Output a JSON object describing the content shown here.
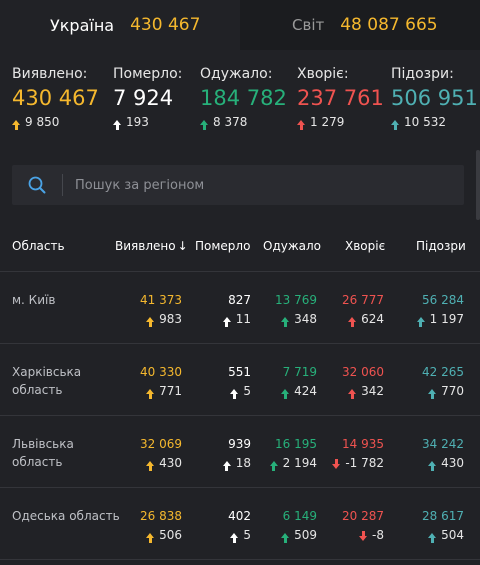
{
  "tabs": [
    {
      "name": "Україна",
      "count": "430 467"
    },
    {
      "name": "Світ",
      "count": "48 087 665"
    }
  ],
  "summary": [
    {
      "label": "Виявлено:",
      "value": "430 467",
      "delta": "9 850"
    },
    {
      "label": "Померло:",
      "value": "7 924",
      "delta": "193"
    },
    {
      "label": "Одужало:",
      "value": "184 782",
      "delta": "8 378"
    },
    {
      "label": "Хворіє:",
      "value": "237 761",
      "delta": "1 279"
    },
    {
      "label": "Підозри:",
      "value": "506 951",
      "delta": "10 532"
    }
  ],
  "search": {
    "placeholder": "Пошук за регіоном"
  },
  "table": {
    "headers": [
      "Область",
      "Виявлено",
      "Померло",
      "Одужало",
      "Хворіє",
      "Підозри"
    ],
    "rows": [
      {
        "name": "м. Київ",
        "confirmed": "41 373",
        "confirmed_d": "983",
        "deaths": "827",
        "deaths_d": "11",
        "recovered": "13 769",
        "recovered_d": "348",
        "active": "26 777",
        "active_d": "624",
        "suspected": "56 284",
        "suspected_d": "1 197"
      },
      {
        "name": "Харківська область",
        "confirmed": "40 330",
        "confirmed_d": "771",
        "deaths": "551",
        "deaths_d": "5",
        "recovered": "7 719",
        "recovered_d": "424",
        "active": "32 060",
        "active_d": "342",
        "suspected": "42 265",
        "suspected_d": "770"
      },
      {
        "name": "Львівська область",
        "confirmed": "32 069",
        "confirmed_d": "430",
        "deaths": "939",
        "deaths_d": "18",
        "recovered": "16 195",
        "recovered_d": "2 194",
        "active": "14 935",
        "active_d": "-1 782",
        "suspected": "34 242",
        "suspected_d": "430"
      },
      {
        "name": "Одеська область",
        "confirmed": "26 838",
        "confirmed_d": "506",
        "deaths": "402",
        "deaths_d": "5",
        "recovered": "6 149",
        "recovered_d": "509",
        "active": "20 287",
        "active_d": "-8",
        "suspected": "28 617",
        "suspected_d": "504"
      }
    ]
  },
  "colors": {
    "confirmed": "#f5b82e",
    "deaths": "#ffffff",
    "recovered": "#27b07a",
    "active": "#ef5350",
    "suspected": "#4fb0b3"
  }
}
